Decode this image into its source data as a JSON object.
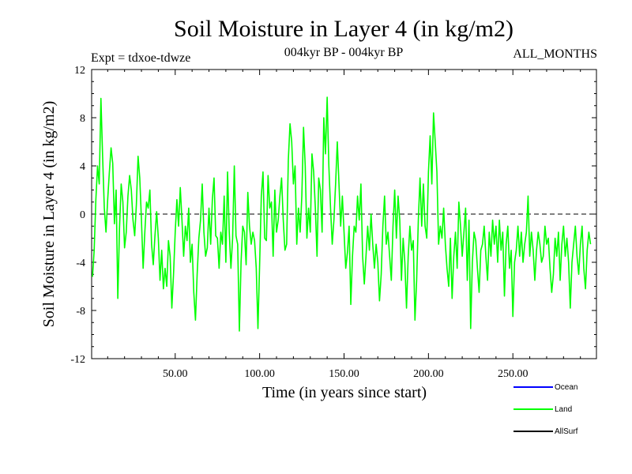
{
  "chart_data": {
    "type": "line",
    "title": "Soil Moisture in Layer 4 (in kg/m2)",
    "subtitle": "004kyr BP - 004kyr BP",
    "left_note": "Expt = tdxoe-tdwze",
    "right_note": "ALL_MONTHS",
    "xlabel": "Time (in years since start)",
    "ylabel": "Soil Moisture in Layer 4 (in kg/m2)",
    "xlim": [
      0.5,
      299.5
    ],
    "ylim": [
      -12,
      12
    ],
    "x_ticks": [
      50,
      100,
      150,
      200,
      250
    ],
    "x_tick_labels": [
      "50.00",
      "100.00",
      "150.00",
      "200.00",
      "250.00"
    ],
    "y_ticks": [
      12,
      8,
      4,
      0,
      -4,
      -8,
      -12
    ],
    "y_tick_labels": [
      "12",
      "8",
      "4",
      "0",
      "-4",
      "-8",
      "-12"
    ],
    "zero_line": true,
    "grid": false,
    "legend_position": "bottom-right",
    "colors": {
      "Ocean": "#0000ff",
      "Land": "#00ff00",
      "AllSurf": "#000000"
    },
    "series": [
      {
        "name": "Ocean",
        "values": []
      },
      {
        "name": "Land",
        "sample_step_years": 1,
        "x_start": 1,
        "values": [
          -5.2,
          -3.0,
          1.2,
          4.0,
          2.5,
          9.6,
          4.8,
          0.5,
          -1.5,
          1.2,
          3.5,
          5.5,
          4.2,
          -0.8,
          2.0,
          -7.0,
          -1.2,
          2.5,
          1.0,
          -2.8,
          -1.5,
          1.5,
          3.2,
          2.0,
          -0.5,
          -1.8,
          0.8,
          4.8,
          3.0,
          -0.5,
          -4.5,
          -1.5,
          1.0,
          0.5,
          2.0,
          -2.5,
          -4.2,
          -1.8,
          0.2,
          -2.0,
          -5.5,
          -3.0,
          -6.2,
          -4.5,
          -6.0,
          -2.2,
          -3.5,
          -7.8,
          -5.0,
          -1.5,
          1.2,
          -1.0,
          2.2,
          -0.5,
          -3.5,
          -1.0,
          -2.2,
          0.5,
          -4.0,
          -2.5,
          -6.5,
          -8.8,
          -5.0,
          -2.0,
          -0.5,
          2.5,
          -1.5,
          -3.5,
          -2.8,
          0.5,
          -2.5,
          1.2,
          3.0,
          -1.8,
          -2.0,
          -4.5,
          -1.5,
          -2.5,
          1.5,
          -4.0,
          3.5,
          -1.5,
          -4.5,
          -2.0,
          4.0,
          -1.8,
          -2.5,
          -9.7,
          -4.0,
          -1.0,
          -1.5,
          -4.2,
          1.8,
          -1.0,
          -2.5,
          -1.5,
          -2.2,
          -4.5,
          -9.5,
          -4.2,
          1.5,
          3.5,
          -2.0,
          -2.2,
          3.2,
          0.5,
          1.0,
          -3.5,
          2.0,
          -1.5,
          -0.5,
          1.5,
          3.0,
          -0.5,
          -3.0,
          -2.5,
          4.5,
          7.5,
          6.0,
          2.5,
          4.0,
          -2.5,
          0.5,
          -1.5,
          1.5,
          7.2,
          4.0,
          -2.0,
          0.5,
          -1.5,
          5.0,
          3.5,
          0.5,
          -3.5,
          3.0,
          2.0,
          -1.5,
          8.0,
          5.0,
          9.7,
          4.0,
          0.5,
          -2.5,
          -0.5,
          2.5,
          6.0,
          2.5,
          -1.0,
          1.5,
          -1.5,
          -4.5,
          -3.2,
          -1.0,
          -7.5,
          -3.5,
          -1.0,
          -1.5,
          1.5,
          -0.5,
          2.5,
          -3.5,
          -5.8,
          -3.5,
          -1.0,
          -3.0,
          0.0,
          -2.5,
          -4.5,
          -2.5,
          -4.0,
          -7.2,
          -5.0,
          -1.0,
          1.5,
          -2.5,
          -1.5,
          -3.5,
          -5.5,
          -1.0,
          2.0,
          -2.0,
          1.5,
          -0.5,
          -5.5,
          -2.0,
          -4.0,
          -7.8,
          -3.5,
          -1.0,
          -3.0,
          -2.2,
          -8.8,
          -5.5,
          -0.5,
          3.0,
          -1.0,
          2.5,
          -1.0,
          -2.0,
          3.5,
          6.5,
          2.5,
          8.4,
          6.0,
          3.5,
          -2.5,
          -1.0,
          -2.0,
          0.5,
          -2.5,
          -4.5,
          -6.0,
          -2.0,
          -7.0,
          -3.5,
          -1.5,
          -4.5,
          1.0,
          -1.0,
          -3.5,
          -1.5,
          0.5,
          -5.5,
          -0.5,
          -9.5,
          -4.0,
          -1.5,
          -2.2,
          -4.5,
          -6.5,
          -3.0,
          -2.5,
          -1.0,
          -3.5,
          -5.5,
          -1.5,
          -3.5,
          -0.5,
          -2.5,
          -1.0,
          -4.0,
          -0.5,
          -3.0,
          -1.5,
          -6.8,
          -2.5,
          -1.0,
          -4.5,
          -3.0,
          -8.5,
          -4.0,
          -3.0,
          -1.0,
          -3.5,
          -1.5,
          -4.0,
          -2.5,
          -1.5,
          1.5,
          -3.5,
          -1.5,
          -3.0,
          -5.5,
          -3.0,
          -1.5,
          -2.5,
          -4.0,
          -3.5,
          -1.0,
          -2.5,
          -2.0,
          -4.5,
          -6.5,
          -5.0,
          -2.0,
          -3.5,
          -1.5,
          -5.5,
          -2.5,
          -1.0,
          -3.5,
          -2.0,
          -4.0,
          -7.8,
          -4.0,
          -2.5,
          -1.0,
          -3.5,
          -5.0,
          -2.5,
          -1.0,
          -4.5,
          -6.2,
          -3.0,
          -1.5,
          -2.5
        ]
      },
      {
        "name": "AllSurf",
        "values": []
      }
    ],
    "legend": [
      {
        "label": "Ocean",
        "color": "#0000ff"
      },
      {
        "label": "Land",
        "color": "#00ff00"
      },
      {
        "label": "AllSurf",
        "color": "#000000"
      }
    ]
  }
}
